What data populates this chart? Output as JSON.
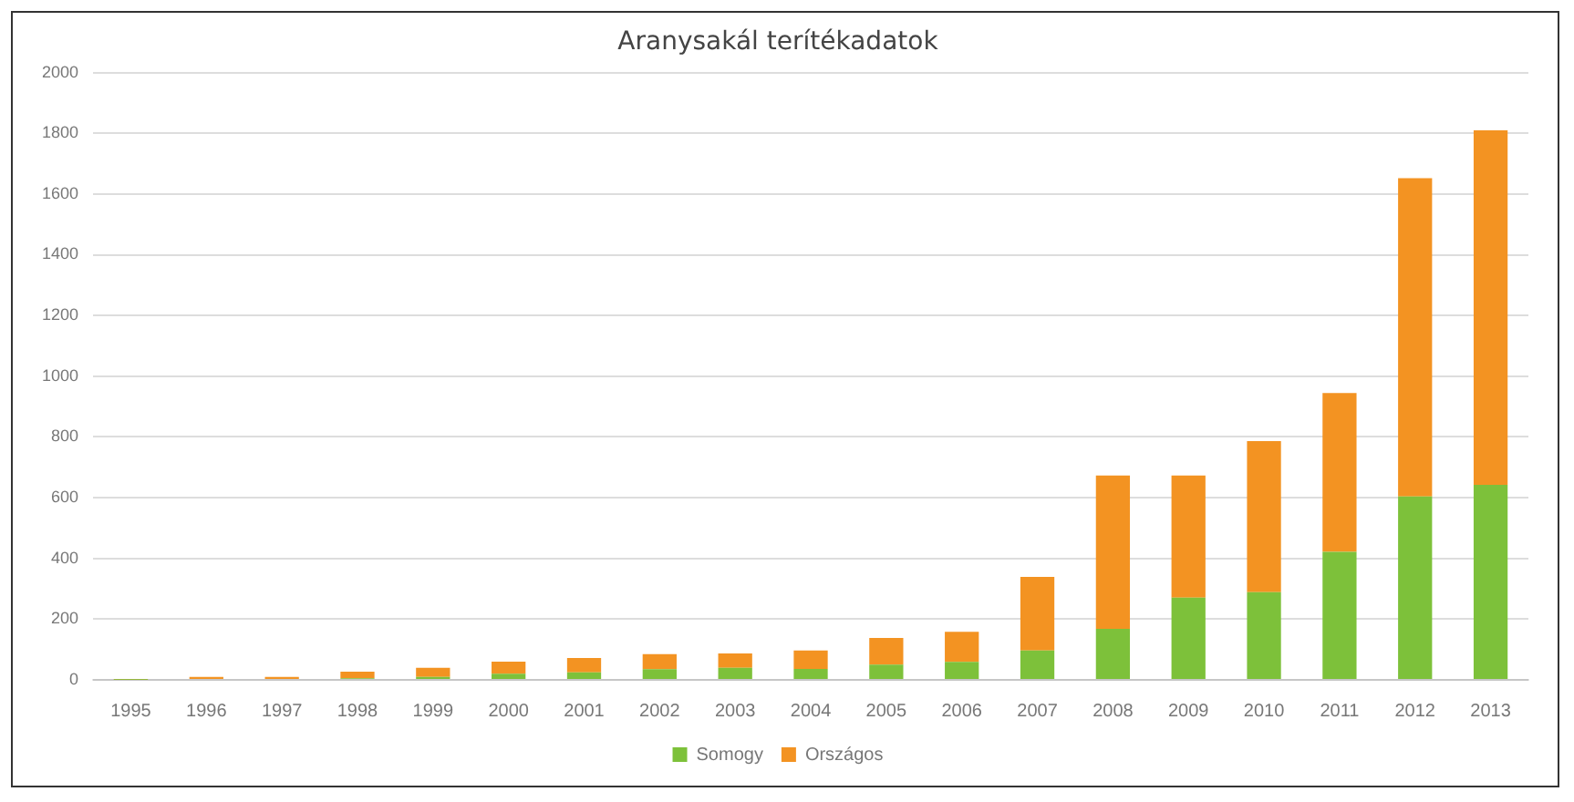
{
  "chart_data": {
    "type": "bar",
    "title": "Aranysakál terítékadatok",
    "stacked": true,
    "categories": [
      "1995",
      "1996",
      "1997",
      "1998",
      "1999",
      "2000",
      "2001",
      "2002",
      "2003",
      "2004",
      "2005",
      "2006",
      "2007",
      "2008",
      "2009",
      "2010",
      "2011",
      "2012",
      "2013"
    ],
    "series": [
      {
        "name": "Somogy",
        "color": "#7dc13a",
        "values": [
          1,
          3,
          3,
          5,
          10,
          20,
          25,
          35,
          40,
          36,
          50,
          59,
          97,
          168,
          271,
          289,
          422,
          604,
          642
        ]
      },
      {
        "name": "Országos",
        "color": "#f39322",
        "values": [
          2,
          7,
          7,
          22,
          30,
          40,
          47,
          50,
          47,
          61,
          88,
          99,
          242,
          505,
          402,
          497,
          523,
          1048,
          1168
        ]
      }
    ],
    "ylim": [
      0,
      2000
    ],
    "yticks": [
      0,
      200,
      400,
      600,
      800,
      1000,
      1200,
      1400,
      1600,
      1800,
      2000
    ],
    "grid": "y",
    "legend": "bottom"
  }
}
